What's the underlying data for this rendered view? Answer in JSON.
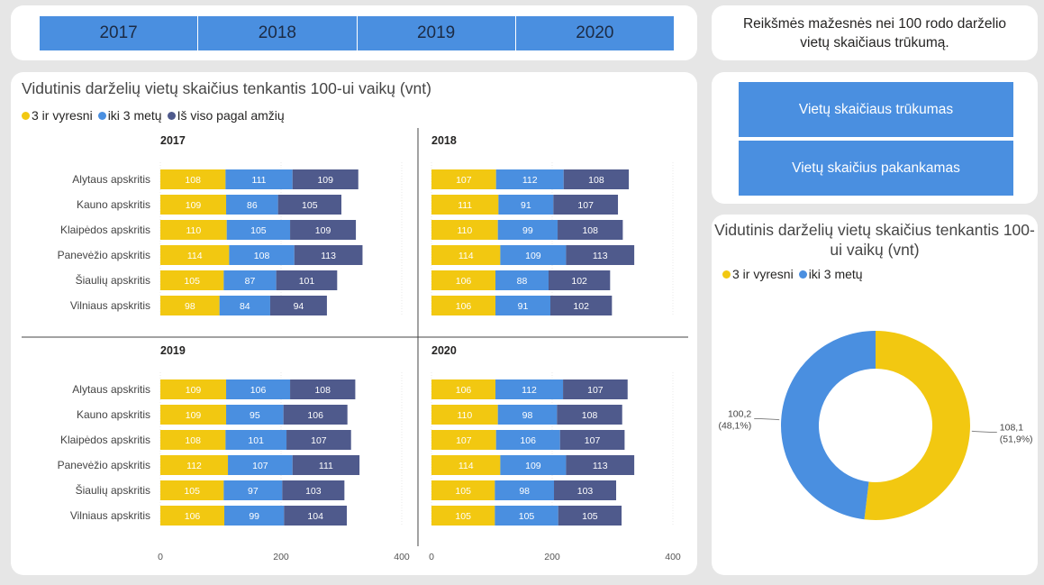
{
  "years": [
    "2017",
    "2018",
    "2019",
    "2020"
  ],
  "note": "Reikšmės mažesnės nei 100 rodo darželio vietų skaičiaus trūkumą.",
  "buttons": {
    "shortage": "Vietų skaičiaus trūkumas",
    "enough": "Vietų skaičius pakankamas"
  },
  "bars_title": "Vidutinis darželių vietų skaičius tenkantis 100-ui vaikų (vnt)",
  "donut_title": "Vidutinis darželių vietų skaičius tenkantis 100-ui vaikų (vnt)",
  "legend": {
    "older": "3 ir vyresni",
    "under3": "iki 3 metų",
    "total": "Iš viso pagal amžių"
  },
  "colors": {
    "older": "#f2c811",
    "under3": "#4a8fe0",
    "total": "#4f5a8c",
    "accent": "#4a8fe0"
  },
  "chart_data": [
    {
      "type": "bar",
      "stacked": true,
      "orientation": "horizontal",
      "title": "2017",
      "categories": [
        "Alytaus apskritis",
        "Kauno apskritis",
        "Klaipėdos apskritis",
        "Panevėžio apskritis",
        "Šiaulių apskritis",
        "Vilniaus apskritis"
      ],
      "series": [
        {
          "name": "3 ir vyresni",
          "values": [
            108,
            109,
            110,
            114,
            105,
            98
          ]
        },
        {
          "name": "iki 3 metų",
          "values": [
            111,
            86,
            105,
            108,
            87,
            84
          ]
        },
        {
          "name": "Iš viso pagal amžių",
          "values": [
            109,
            105,
            109,
            113,
            101,
            94
          ]
        }
      ],
      "xticks": [
        0,
        200,
        400
      ],
      "xlim": [
        0,
        400
      ]
    },
    {
      "type": "bar",
      "stacked": true,
      "orientation": "horizontal",
      "title": "2018",
      "categories": [
        "Alytaus apskritis",
        "Kauno apskritis",
        "Klaipėdos apskritis",
        "Panevėžio apskritis",
        "Šiaulių apskritis",
        "Vilniaus apskritis"
      ],
      "series": [
        {
          "name": "3 ir vyresni",
          "values": [
            107,
            111,
            110,
            114,
            106,
            106
          ]
        },
        {
          "name": "iki 3 metų",
          "values": [
            112,
            91,
            99,
            109,
            88,
            91
          ]
        },
        {
          "name": "Iš viso pagal amžių",
          "values": [
            108,
            107,
            108,
            113,
            102,
            102
          ]
        }
      ],
      "xticks": [
        0,
        200,
        400
      ],
      "xlim": [
        0,
        400
      ]
    },
    {
      "type": "bar",
      "stacked": true,
      "orientation": "horizontal",
      "title": "2019",
      "categories": [
        "Alytaus apskritis",
        "Kauno apskritis",
        "Klaipėdos apskritis",
        "Panevėžio apskritis",
        "Šiaulių apskritis",
        "Vilniaus apskritis"
      ],
      "series": [
        {
          "name": "3 ir vyresni",
          "values": [
            109,
            109,
            108,
            112,
            105,
            106
          ]
        },
        {
          "name": "iki 3 metų",
          "values": [
            106,
            95,
            101,
            107,
            97,
            99
          ]
        },
        {
          "name": "Iš viso pagal amžių",
          "values": [
            108,
            106,
            107,
            111,
            103,
            104
          ]
        }
      ],
      "xticks": [
        0,
        200,
        400
      ],
      "xlim": [
        0,
        400
      ]
    },
    {
      "type": "bar",
      "stacked": true,
      "orientation": "horizontal",
      "title": "2020",
      "categories": [
        "Alytaus apskritis",
        "Kauno apskritis",
        "Klaipėdos apskritis",
        "Panevėžio apskritis",
        "Šiaulių apskritis",
        "Vilniaus apskritis"
      ],
      "series": [
        {
          "name": "3 ir vyresni",
          "values": [
            106,
            110,
            107,
            114,
            105,
            105
          ]
        },
        {
          "name": "iki 3 metų",
          "values": [
            112,
            98,
            106,
            109,
            98,
            105
          ]
        },
        {
          "name": "Iš viso pagal amžių",
          "values": [
            107,
            108,
            107,
            113,
            103,
            105
          ]
        }
      ],
      "xticks": [
        0,
        200,
        400
      ],
      "xlim": [
        0,
        400
      ]
    },
    {
      "type": "pie",
      "donut": true,
      "title": "Vidutinis darželių vietų skaičius tenkantis 100-ui vaikų (vnt)",
      "slices": [
        {
          "name": "3 ir vyresni",
          "value": 108.1,
          "value_label": "108,1",
          "percent_label": "(51,9%)"
        },
        {
          "name": "iki 3 metų",
          "value": 100.2,
          "value_label": "100,2",
          "percent_label": "(48,1%)"
        }
      ]
    }
  ]
}
